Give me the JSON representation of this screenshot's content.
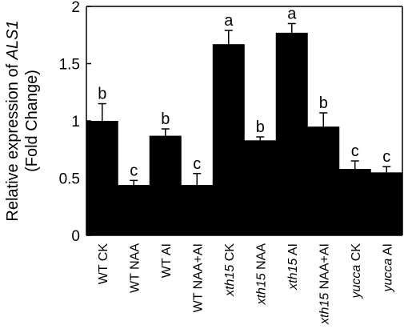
{
  "chart_data": {
    "type": "bar",
    "title": "",
    "xlabel": "",
    "ylabel": {
      "line1_prefix": "Relative expression of ",
      "line1_italic": "ALS1",
      "line2": "(Fold Change)"
    },
    "ylim": [
      0,
      2
    ],
    "yticks": [
      "0",
      "0.5",
      "1",
      "1.5",
      "2"
    ],
    "grid": false,
    "legend": "none",
    "bar_color": "#000000",
    "categories": [
      {
        "italic": "",
        "rest": "WT CK"
      },
      {
        "italic": "",
        "rest": "WT NAA"
      },
      {
        "italic": "",
        "rest": "WT AI"
      },
      {
        "italic": "",
        "rest": "WT NAA+AI"
      },
      {
        "italic": "xth15",
        "rest": " CK"
      },
      {
        "italic": "xth15",
        "rest": " NAA"
      },
      {
        "italic": "xth15",
        "rest": " AI"
      },
      {
        "italic": "xth15",
        "rest": " NAA+AI"
      },
      {
        "italic": "yucca",
        "rest": " CK"
      },
      {
        "italic": "yucca",
        "rest": " AI"
      }
    ],
    "values": [
      1.0,
      0.44,
      0.87,
      0.44,
      1.67,
      0.83,
      1.77,
      0.95,
      0.58,
      0.55
    ],
    "errors": [
      0.15,
      0.04,
      0.06,
      0.1,
      0.12,
      0.03,
      0.08,
      0.12,
      0.07,
      0.05
    ],
    "significance": [
      "b",
      "c",
      "b",
      "c",
      "a",
      "b",
      "a",
      "b",
      "c",
      "c"
    ]
  }
}
